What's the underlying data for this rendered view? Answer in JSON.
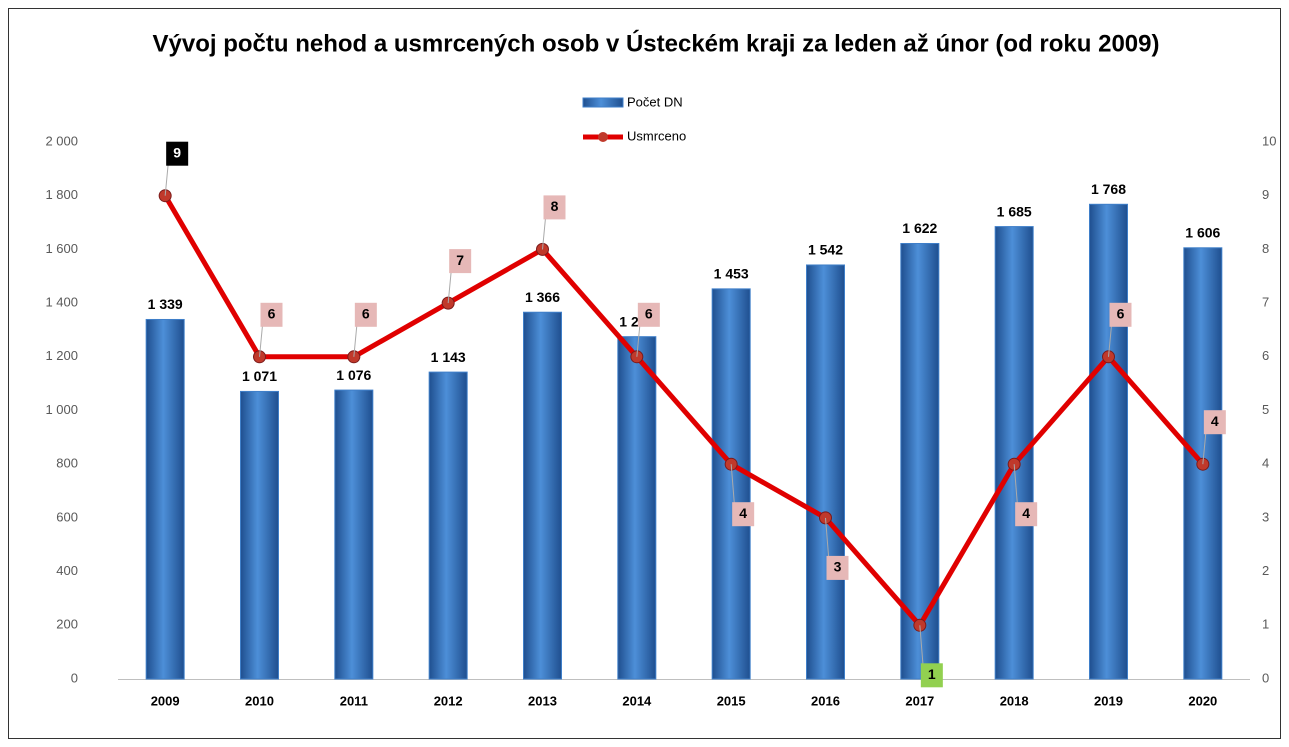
{
  "chart_data": {
    "type": "combo",
    "title": "Vývoj počtu nehod a usmrcených osob v Ústeckém kraji za leden až únor (od roku 2009)",
    "categories": [
      "2009",
      "2010",
      "2011",
      "2012",
      "2013",
      "2014",
      "2015",
      "2016",
      "2017",
      "2018",
      "2019",
      "2020"
    ],
    "series": [
      {
        "name": "Počet DN",
        "type": "bar",
        "color": "#3f7fc9",
        "values": [
          1339,
          1071,
          1076,
          1143,
          1366,
          1275,
          1453,
          1542,
          1622,
          1685,
          1768,
          1606
        ],
        "value_labels": [
          "1 339",
          "1 071",
          "1 076",
          "1 143",
          "1 366",
          "1 275",
          "1 453",
          "1 542",
          "1 622",
          "1 685",
          "1 768",
          "1 606"
        ]
      },
      {
        "name": "Usmrceno",
        "type": "line",
        "axis": "y2",
        "color": "#e00000",
        "values": [
          9,
          6,
          6,
          7,
          8,
          6,
          4,
          3,
          1,
          4,
          6,
          4
        ],
        "label_colors": [
          "#000000",
          "#e6b8b7",
          "#e6b8b7",
          "#e6b8b7",
          "#e6b8b7",
          "#e6b8b7",
          "#e6b8b7",
          "#e6b8b7",
          "#92d050",
          "#e6b8b7",
          "#e6b8b7",
          "#e6b8b7"
        ]
      }
    ],
    "ylim": [
      0,
      2000
    ],
    "yticks": [
      0,
      200,
      400,
      600,
      800,
      {
        "value": 1000,
        "label": "1 000"
      },
      {
        "value": 1200,
        "label": "1 200"
      },
      {
        "value": 1400,
        "label": "1 400"
      },
      {
        "value": 1600,
        "label": "1 600"
      },
      {
        "value": 1800,
        "label": "1 800"
      },
      {
        "value": 2000,
        "label": "2 000"
      }
    ],
    "y2lim": [
      0,
      10
    ],
    "y2ticks": [
      0,
      1,
      2,
      3,
      4,
      5,
      6,
      7,
      8,
      9,
      10
    ],
    "legend": "top"
  }
}
